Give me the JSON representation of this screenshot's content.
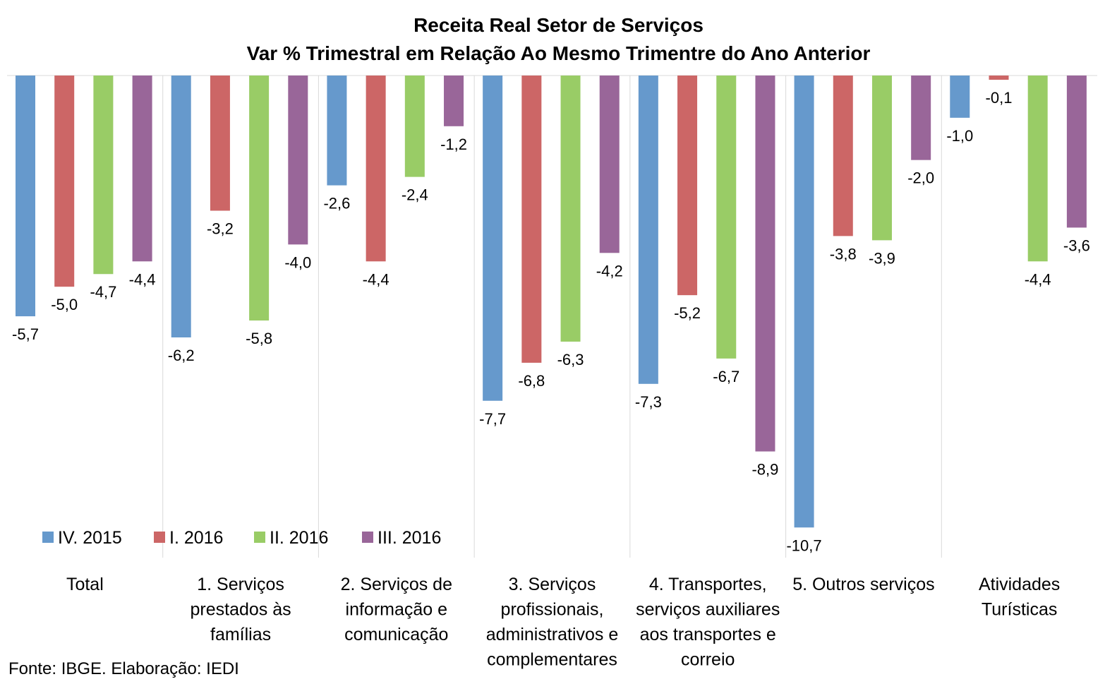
{
  "title_line1": "Receita Real Setor de Serviços",
  "title_line2": "Var % Trimestral em Relação Ao Mesmo Trimentre do Ano Anterior",
  "source": "Fonte: IBGE. Elaboração: IEDI",
  "colors": {
    "IV. 2015": "#6699cc",
    "I. 2016": "#cc6666",
    "II. 2016": "#99cc66",
    "III. 2016": "#996699"
  },
  "chart_data": {
    "type": "bar",
    "title": "Receita Real Setor de Serviços — Var % Trimestral em Relação Ao Mesmo Trimentre do Ano Anterior",
    "categories": [
      "Total",
      "1. Serviços prestados às famílias",
      "2. Serviços de informação e comunicação",
      "3. Serviços profissionais, administrativos e complementares",
      "4. Transportes, serviços auxiliares aos transportes e correio",
      "5. Outros serviços",
      "Atividades Turísticas"
    ],
    "category_lines": [
      [
        "Total"
      ],
      [
        "1. Serviços",
        "prestados às",
        "famílias"
      ],
      [
        "2. Serviços de",
        "informação e",
        "comunicação"
      ],
      [
        "3. Serviços",
        "profissionais,",
        "administrativos e",
        "complementares"
      ],
      [
        "4. Transportes,",
        "serviços auxiliares",
        "aos transportes e",
        "correio"
      ],
      [
        "5. Outros serviços"
      ],
      [
        "Atividades",
        "Turísticas"
      ]
    ],
    "series": [
      {
        "name": "IV. 2015",
        "values": [
          -5.7,
          -6.2,
          -2.6,
          -7.7,
          -7.3,
          -10.7,
          -1.0
        ],
        "labels": [
          "-5,7",
          "-6,2",
          "-2,6",
          "-7,7",
          "-7,3",
          "-10,7",
          "-1,0"
        ]
      },
      {
        "name": "I. 2016",
        "values": [
          -5.0,
          -3.2,
          -4.4,
          -6.8,
          -5.2,
          -3.8,
          -0.1
        ],
        "labels": [
          "-5,0",
          "-3,2",
          "-4,4",
          "-6,8",
          "-5,2",
          "-3,8",
          "-0,1"
        ]
      },
      {
        "name": "II. 2016",
        "values": [
          -4.7,
          -5.8,
          -2.4,
          -6.3,
          -6.7,
          -3.9,
          -4.4
        ],
        "labels": [
          "-4,7",
          "-5,8",
          "-2,4",
          "-6,3",
          "-6,7",
          "-3,9",
          "-4,4"
        ]
      },
      {
        "name": "III. 2016",
        "values": [
          -4.4,
          -4.0,
          -1.2,
          -4.2,
          -8.9,
          -2.0,
          -3.6
        ],
        "labels": [
          "-4,4",
          "-4,0",
          "-1,2",
          "-4,2",
          "-8,9",
          "-2,0",
          "-3,6"
        ]
      }
    ],
    "ylim": [
      -11.3,
      0
    ],
    "legend_position": "bottom-left inside plot",
    "grid": false
  }
}
